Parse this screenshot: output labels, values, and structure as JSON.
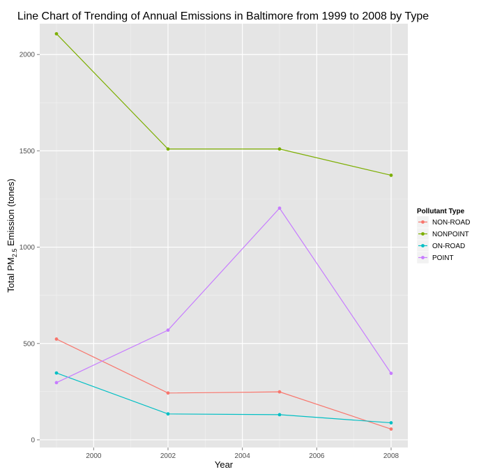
{
  "chart_data": {
    "type": "line",
    "title": "Line Chart of Trending of Annual Emissions in Baltimore from 1999 to 2008 by Type",
    "xlabel": "Year",
    "ylabel_parts": {
      "prefix": "Total PM",
      "subscript": "2.5",
      "suffix": " Emission (tones)"
    },
    "x": [
      1999,
      2002,
      2005,
      2008
    ],
    "xlim": [
      1998.55,
      2008.45
    ],
    "ylim": [
      -40,
      2160
    ],
    "x_ticks": [
      2000,
      2002,
      2004,
      2006,
      2008
    ],
    "x_tick_labels": [
      "2000",
      "2002",
      "2004",
      "2006",
      "2008"
    ],
    "y_ticks": [
      0,
      500,
      1000,
      1500,
      2000
    ],
    "y_tick_labels": [
      "0",
      "500",
      "1000",
      "1500",
      "2000"
    ],
    "grid": true,
    "legend": {
      "title": "Pollutant Type",
      "position": "right"
    },
    "series": [
      {
        "name": "NON-ROAD",
        "color": "#F8766D",
        "values": [
          522.94,
          242.85,
          248.93,
          55.82
        ]
      },
      {
        "name": "NONPOINT",
        "color": "#7CAE00",
        "values": [
          2107.63,
          1509.5,
          1509.5,
          1373.21
        ]
      },
      {
        "name": "ON-ROAD",
        "color": "#00BFC4",
        "values": [
          346.82,
          134.31,
          130.43,
          88.28
        ]
      },
      {
        "name": "POINT",
        "color": "#C77CFF",
        "values": [
          296.8,
          569.26,
          1202.49,
          344.98
        ]
      }
    ]
  }
}
